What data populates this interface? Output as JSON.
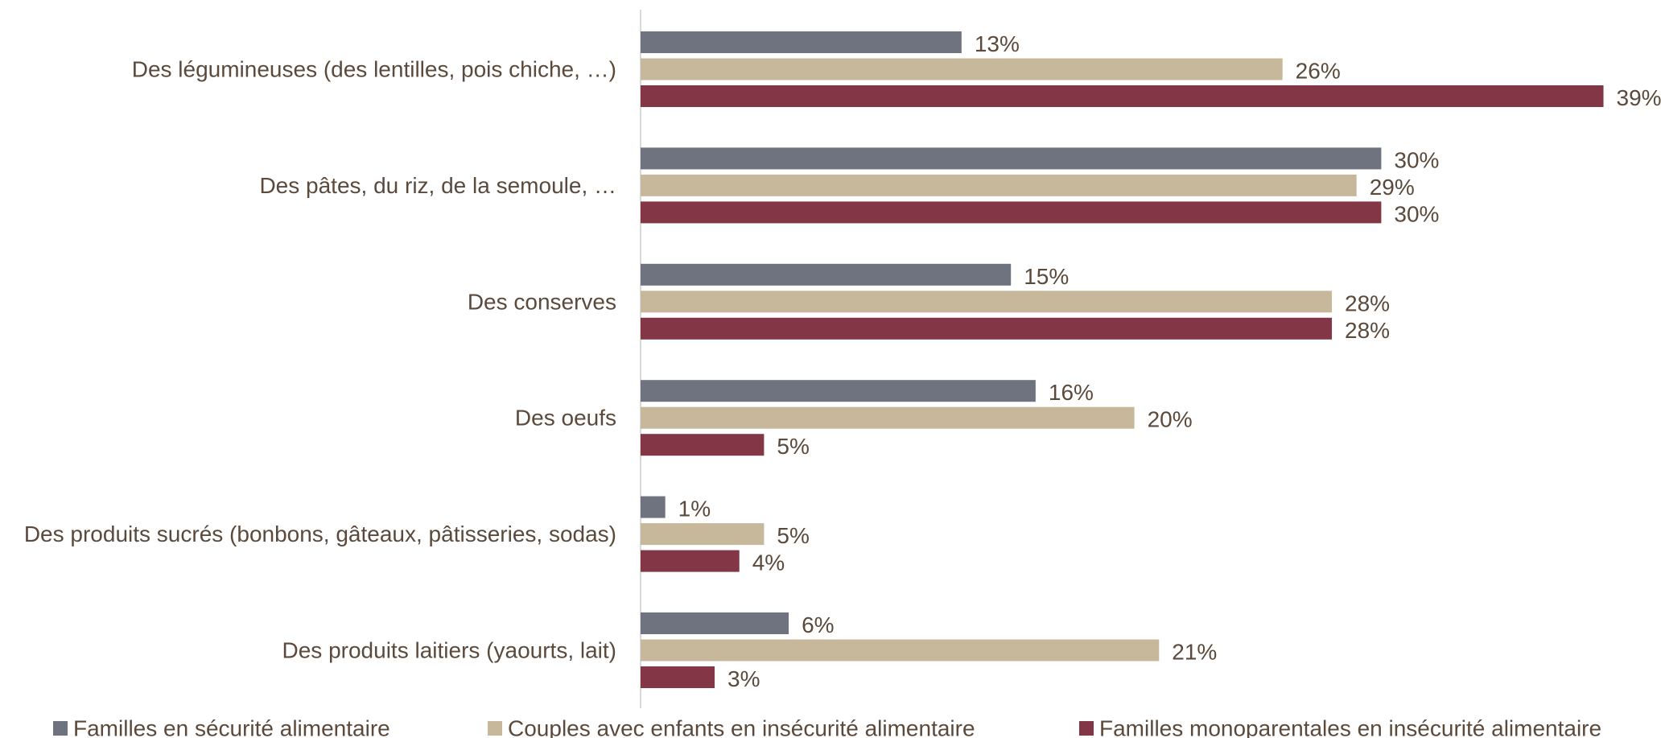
{
  "chart_data": {
    "type": "bar",
    "orientation": "horizontal",
    "categories": [
      "Des légumineuses (des lentilles, pois chiche, …)",
      "Des pâtes, du riz, de la semoule, …",
      "Des conserves",
      "Des oeufs",
      "Des produits sucrés (bonbons, gâteaux, pâtisseries, sodas)",
      "Des produits laitiers (yaourts, lait)"
    ],
    "series": [
      {
        "name": "Familles en sécurité alimentaire",
        "color": "#6e737f",
        "values": [
          13,
          30,
          15,
          16,
          1,
          6
        ],
        "labels": [
          "13%",
          "30%",
          "15%",
          "16%",
          "1%",
          "6%"
        ]
      },
      {
        "name": "Couples avec enfants en insécurité alimentaire",
        "color": "#c8b89b",
        "values": [
          26,
          29,
          28,
          20,
          5,
          21
        ],
        "labels": [
          "26%",
          "29%",
          "28%",
          "20%",
          "5%",
          "21%"
        ]
      },
      {
        "name": "Familles monoparentales en insécurité alimentaire",
        "color": "#823646",
        "values": [
          39,
          30,
          28,
          5,
          4,
          3
        ],
        "labels": [
          "39%",
          "30%",
          "28%",
          "5%",
          "4%",
          "3%"
        ]
      }
    ],
    "xlim": [
      0,
      39
    ],
    "grid": false,
    "legend_position": "bottom",
    "title": "",
    "xlabel": "",
    "ylabel": ""
  }
}
